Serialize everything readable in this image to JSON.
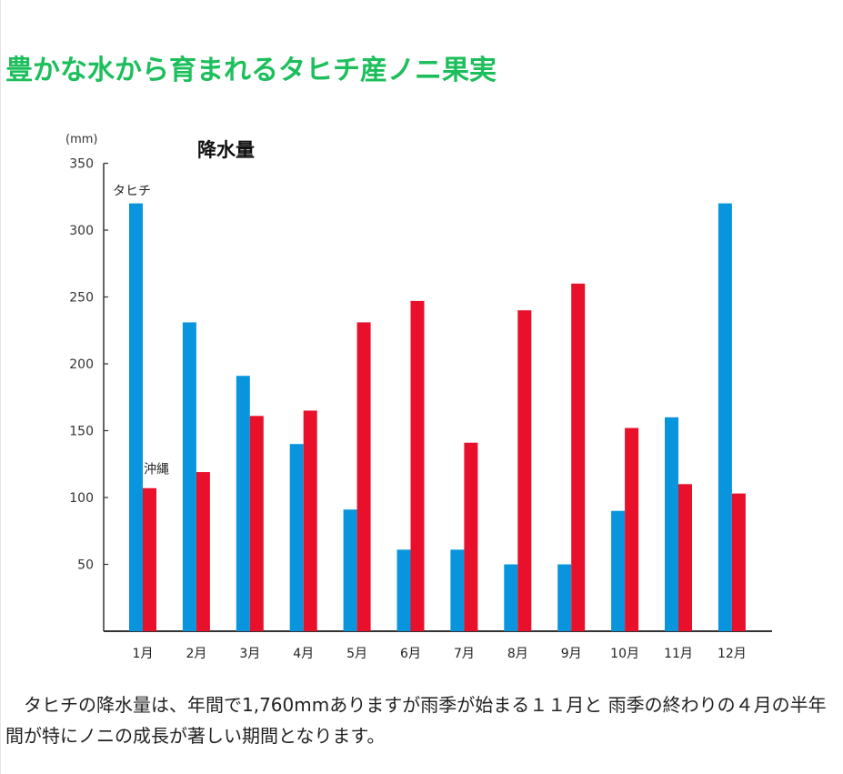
{
  "heading": "豊かな水から育まれるタヒチ産ノニ果実",
  "caption": "タヒチの降水量は、年間で1,760mmありますが雨季が始まる１１月と 雨季の終わりの４月の半年間が特にノニの成長が著しい期間となります。",
  "colors": {
    "heading": "#1cbf5c",
    "tahiti": "#0895dd",
    "okinawa": "#e8102a",
    "axis": "#333333"
  },
  "chart_data": {
    "type": "bar",
    "title": "降水量",
    "ylabel": "(mm)",
    "xlabel": "",
    "ylim": [
      0,
      350
    ],
    "yticks": [
      50,
      100,
      150,
      200,
      250,
      300,
      350
    ],
    "grid": false,
    "legend": "series labels placed on first bars",
    "categories": [
      "1月",
      "2月",
      "3月",
      "4月",
      "5月",
      "6月",
      "7月",
      "8月",
      "9月",
      "10月",
      "11月",
      "12月"
    ],
    "series": [
      {
        "name": "タヒチ",
        "color": "#0895dd",
        "values": [
          320,
          231,
          191,
          140,
          91,
          61,
          61,
          50,
          50,
          90,
          160,
          320
        ]
      },
      {
        "name": "沖縄",
        "color": "#e8102a",
        "values": [
          107,
          119,
          161,
          165,
          231,
          247,
          141,
          240,
          260,
          152,
          110,
          103
        ]
      }
    ]
  }
}
